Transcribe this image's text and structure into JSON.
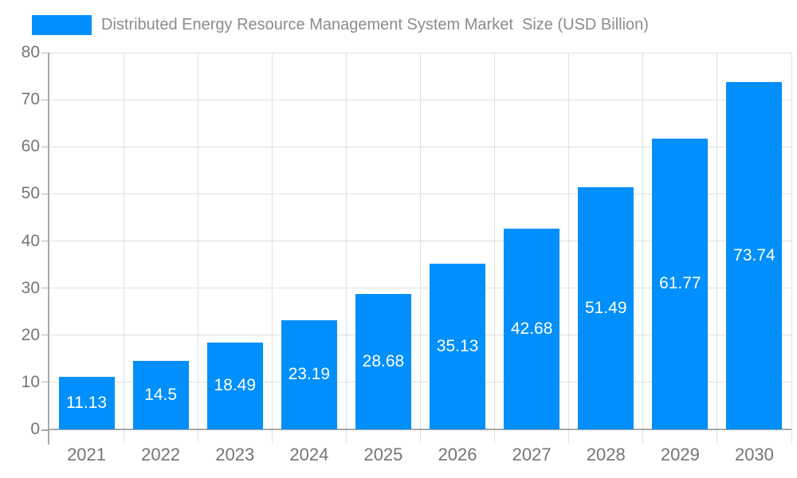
{
  "legend": {
    "label": "Distributed Energy Resource Management System Market  Size (USD Billion)"
  },
  "colors": {
    "bar": "#008FFB",
    "grid": "#e0e0e0",
    "axis": "#a8a8a8",
    "tick": "#b8b8b8",
    "axis_label": "#757575",
    "legend_text": "#8c8c8c",
    "value_label": "#ffffff",
    "background": "#ffffff"
  },
  "chart_data": {
    "type": "bar",
    "title": "Distributed Energy Resource Management System Market  Size (USD Billion)",
    "series_name": "Distributed Energy Resource Management System Market  Size (USD Billion)",
    "categories": [
      "2021",
      "2022",
      "2023",
      "2024",
      "2025",
      "2026",
      "2027",
      "2028",
      "2029",
      "2030"
    ],
    "values": [
      11.13,
      14.5,
      18.49,
      23.19,
      28.68,
      35.13,
      42.68,
      51.49,
      61.77,
      73.74
    ],
    "value_labels": [
      "11.13",
      "14.5",
      "18.49",
      "23.19",
      "28.68",
      "35.13",
      "42.68",
      "51.49",
      "61.77",
      "73.74"
    ],
    "xlabel": "",
    "ylabel": "",
    "ylim": [
      0,
      80
    ],
    "yticks": [
      0,
      10,
      20,
      30,
      40,
      50,
      60,
      70,
      80
    ],
    "grid": true,
    "legend_position": "top-left",
    "value_label_position": "inside-center",
    "value_label_color": "#ffffff"
  }
}
